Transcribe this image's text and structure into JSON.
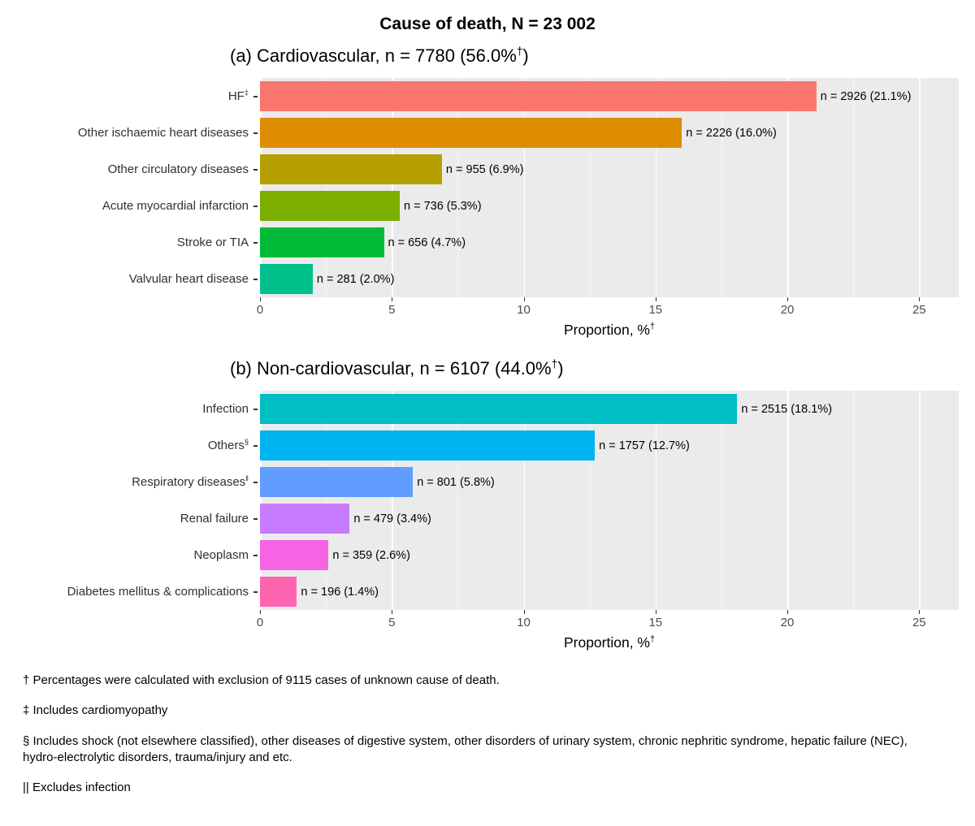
{
  "title": "Cause of death, N = 23 002",
  "style": {
    "panel_background": "#EBEBEB",
    "grid_major_color": "#FFFFFF"
  },
  "chart_data": [
    {
      "type": "bar",
      "orientation": "horizontal",
      "title_parts": {
        "pre": "(a) Cardiovascular, n = 7780 (56.0%",
        "sup": "†",
        "post": ")"
      },
      "xlabel_parts": {
        "pre": "Proportion, %",
        "sup": "†"
      },
      "xlim": [
        0,
        26.5
      ],
      "xticks": [
        0,
        5,
        10,
        15,
        20,
        25
      ],
      "grid": true,
      "bars": [
        {
          "label": "HF",
          "sup": "‡",
          "value": 21.1,
          "annotation": "n = 2926 (21.1%)",
          "color": "#F8766D"
        },
        {
          "label": "Other ischaemic heart diseases",
          "sup": "",
          "value": 16.0,
          "annotation": "n = 2226 (16.0%)",
          "color": "#DE8C00"
        },
        {
          "label": "Other circulatory diseases",
          "sup": "",
          "value": 6.9,
          "annotation": "n = 955 (6.9%)",
          "color": "#B79F00"
        },
        {
          "label": "Acute myocardial infarction",
          "sup": "",
          "value": 5.3,
          "annotation": "n = 736 (5.3%)",
          "color": "#7CAE00"
        },
        {
          "label": "Stroke or TIA",
          "sup": "",
          "value": 4.7,
          "annotation": "n = 656 (4.7%)",
          "color": "#00BA38"
        },
        {
          "label": "Valvular heart disease",
          "sup": "",
          "value": 2.0,
          "annotation": "n = 281 (2.0%)",
          "color": "#00C08B"
        }
      ]
    },
    {
      "type": "bar",
      "orientation": "horizontal",
      "title_parts": {
        "pre": "(b) Non-cardiovascular, n = 6107 (44.0%",
        "sup": "†",
        "post": ")"
      },
      "xlabel_parts": {
        "pre": "Proportion, %",
        "sup": "†"
      },
      "xlim": [
        0,
        26.5
      ],
      "xticks": [
        0,
        5,
        10,
        15,
        20,
        25
      ],
      "grid": true,
      "bars": [
        {
          "label": "Infection",
          "sup": "",
          "value": 18.1,
          "annotation": "n = 2515 (18.1%)",
          "color": "#00BFC4"
        },
        {
          "label": "Others",
          "sup": "§",
          "value": 12.7,
          "annotation": "n = 1757 (12.7%)",
          "color": "#00B4F0"
        },
        {
          "label": "Respiratory diseases",
          "sup": "‖",
          "value": 5.8,
          "annotation": "n = 801 (5.8%)",
          "color": "#619CFF"
        },
        {
          "label": "Renal failure",
          "sup": "",
          "value": 3.4,
          "annotation": "n = 479 (3.4%)",
          "color": "#C77CFF"
        },
        {
          "label": "Neoplasm",
          "sup": "",
          "value": 2.6,
          "annotation": "n = 359 (2.6%)",
          "color": "#F564E3"
        },
        {
          "label": "Diabetes mellitus & complications",
          "sup": "",
          "value": 1.4,
          "annotation": "n = 196 (1.4%)",
          "color": "#FF64B0"
        }
      ]
    }
  ],
  "footnotes": [
    "† Percentages were calculated with exclusion of 9115 cases of unknown cause of death.",
    "‡ Includes cardiomyopathy",
    "§ Includes shock (not elsewhere classified), other diseases of digestive system, other disorders of urinary system, chronic nephritic syndrome, hepatic failure (NEC), hydro-electrolytic disorders, trauma/injury and etc.",
    "|| Excludes infection"
  ]
}
